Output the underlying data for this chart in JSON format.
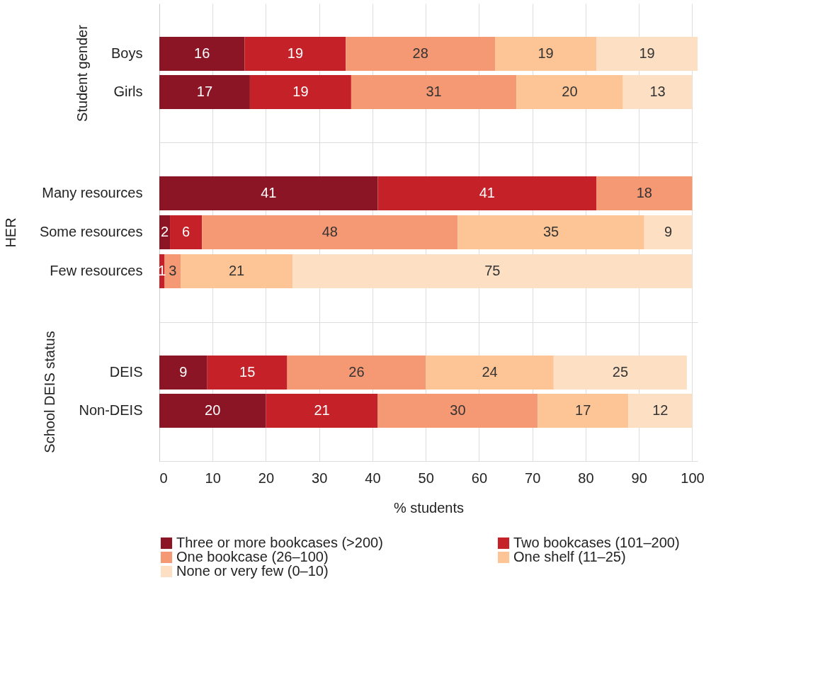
{
  "chart_data": [
    {
      "type": "bar",
      "orientation": "horizontal",
      "stacked": true,
      "ylabel": "Student gender",
      "categories": [
        "Boys",
        "Girls"
      ],
      "xlim": [
        0,
        101
      ],
      "xticks": [
        0,
        10,
        20,
        30,
        40,
        50,
        60,
        70,
        80,
        90,
        100
      ],
      "grid": "x",
      "tick_labels": "y",
      "data_labels": true,
      "legend": false,
      "series": [
        {
          "color": "#8b1525",
          "values": [
            16,
            17
          ]
        },
        {
          "color": "#c52128",
          "values": [
            19,
            19
          ]
        },
        {
          "color": "#f59874",
          "values": [
            28,
            31
          ]
        },
        {
          "color": "#fdc596",
          "values": [
            19,
            20
          ]
        },
        {
          "color": "#fde0c4",
          "values": [
            19,
            13
          ]
        }
      ]
    },
    {
      "type": "bar",
      "orientation": "horizontal",
      "stacked": true,
      "ylabel": "HER",
      "categories": [
        "Many resources",
        "Some resources",
        "Few resources"
      ],
      "xlim": [
        0,
        101
      ],
      "xticks": [
        0,
        10,
        20,
        30,
        40,
        50,
        60,
        70,
        80,
        90,
        100
      ],
      "grid": "x",
      "tick_labels": "y",
      "data_labels": true,
      "legend": false,
      "series": [
        {
          "color": "#8b1525",
          "values": [
            41,
            2,
            null
          ]
        },
        {
          "color": "#c52128",
          "values": [
            41,
            6,
            1
          ]
        },
        {
          "color": "#f59874",
          "values": [
            18,
            48,
            3
          ]
        },
        {
          "color": "#fdc596",
          "values": [
            null,
            35,
            21
          ]
        },
        {
          "color": "#fde0c4",
          "values": [
            null,
            9,
            75
          ]
        }
      ]
    },
    {
      "type": "bar",
      "orientation": "horizontal",
      "stacked": true,
      "ylabel": "School DEIS status",
      "xlabel": "% students",
      "categories": [
        "DEIS",
        "Non-DEIS"
      ],
      "xlim": [
        0,
        101
      ],
      "xticks": [
        0,
        10,
        20,
        30,
        40,
        50,
        60,
        70,
        80,
        90,
        100
      ],
      "grid": "x",
      "data_labels": true,
      "legend": "bottom",
      "series": [
        {
          "name": "Three or more bookcases (>200)",
          "color": "#8b1525",
          "values": [
            9,
            20
          ]
        },
        {
          "name": "Two bookcases (101–200)",
          "color": "#c52128",
          "values": [
            15,
            21
          ]
        },
        {
          "name": "One bookcase (26–100)",
          "color": "#f59874",
          "values": [
            26,
            30
          ]
        },
        {
          "name": "One shelf (11–25)",
          "color": "#fdc596",
          "values": [
            24,
            17
          ]
        },
        {
          "name": "None or very few (0–10)",
          "color": "#fde0c4",
          "values": [
            25,
            12
          ]
        }
      ]
    }
  ]
}
